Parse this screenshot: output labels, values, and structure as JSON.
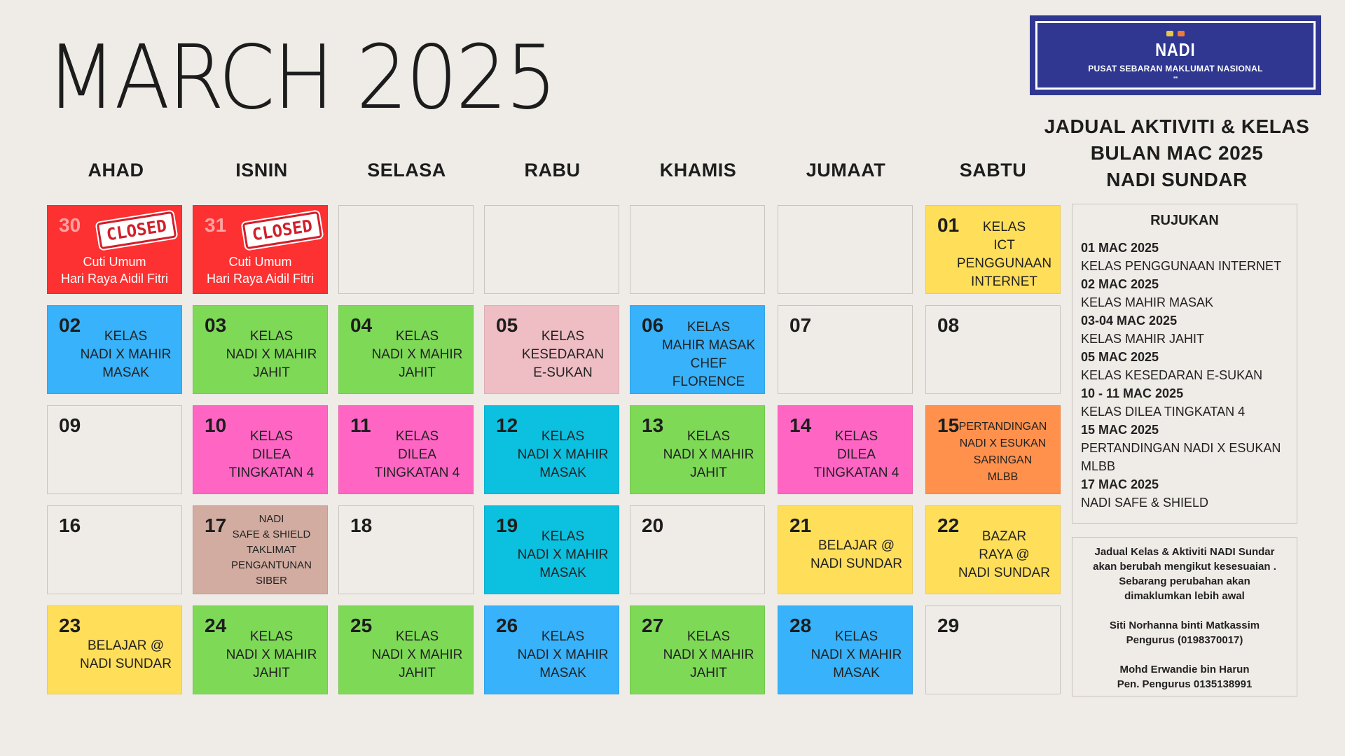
{
  "title": "MARCH 2025",
  "logo": {
    "name": "NADI",
    "subtitle": "PUSAT SEBARAN MAKLUMAT NASIONAL"
  },
  "heading": {
    "line1": "JADUAL AKTIVITI & KELAS",
    "line2": "BULAN MAC 2025",
    "line3": "NADI SUNDAR"
  },
  "days": [
    "AHAD",
    "ISNIN",
    "SELASA",
    "RABU",
    "KHAMIS",
    "JUMAAT",
    "SABTU"
  ],
  "colors": {
    "red": "#fd3131",
    "blue": "#37b2fb",
    "green": "#7ed957",
    "pink": "#efbec4",
    "magenta": "#ff66c4",
    "cyan": "#0cc0df",
    "orange": "#ff914d",
    "yellow": "#ffde59",
    "taupe": "#d2aca0",
    "closed_stamp": "#d21f2a",
    "logo_blue": "#2f3790"
  },
  "calendar": {
    "weeks": [
      [
        {
          "num": "30",
          "color": "red",
          "closed": "CLOSED",
          "lines": [
            "Cuti Umum",
            "Hari Raya Aidil Fitri"
          ]
        },
        {
          "num": "31",
          "color": "red",
          "closed": "CLOSED",
          "lines": [
            "Cuti Umum",
            "Hari Raya Aidil Fitri"
          ]
        },
        {
          "num": "",
          "color": "",
          "lines": []
        },
        {
          "num": "",
          "color": "",
          "lines": []
        },
        {
          "num": "",
          "color": "",
          "lines": []
        },
        {
          "num": "",
          "color": "",
          "lines": []
        },
        {
          "num": "01",
          "color": "yellow",
          "lines": [
            "KELAS",
            "ICT PENGGUNAAN",
            "INTERNET"
          ]
        }
      ],
      [
        {
          "num": "02",
          "color": "blue",
          "lines": [
            "KELAS",
            "NADI X MAHIR",
            "MASAK"
          ]
        },
        {
          "num": "03",
          "color": "green",
          "lines": [
            "KELAS",
            "NADI X MAHIR",
            "JAHIT"
          ]
        },
        {
          "num": "04",
          "color": "green",
          "lines": [
            "KELAS",
            "NADI X MAHIR",
            "JAHIT"
          ]
        },
        {
          "num": "05",
          "color": "pink",
          "lines": [
            "KELAS",
            "KESEDARAN",
            "E-SUKAN"
          ]
        },
        {
          "num": "06",
          "color": "blue",
          "lines": [
            "KELAS",
            "MAHIR MASAK",
            "CHEF FLORENCE"
          ]
        },
        {
          "num": "07",
          "color": "",
          "lines": []
        },
        {
          "num": "08",
          "color": "",
          "lines": []
        }
      ],
      [
        {
          "num": "09",
          "color": "",
          "lines": []
        },
        {
          "num": "10",
          "color": "magenta",
          "lines": [
            "KELAS",
            "DILEA",
            "TINGKATAN 4"
          ]
        },
        {
          "num": "11",
          "color": "magenta",
          "lines": [
            "KELAS",
            "DILEA",
            "TINGKATAN 4"
          ]
        },
        {
          "num": "12",
          "color": "cyan",
          "lines": [
            "KELAS",
            "NADI X MAHIR",
            "MASAK"
          ]
        },
        {
          "num": "13",
          "color": "green",
          "lines": [
            "KELAS",
            "NADI X MAHIR",
            "JAHIT"
          ]
        },
        {
          "num": "14",
          "color": "magenta",
          "lines": [
            "KELAS",
            "DILEA",
            "TINGKATAN 4"
          ]
        },
        {
          "num": "15",
          "color": "orange",
          "size": "small",
          "lines": [
            "PERTANDINGAN",
            "NADI X ESUKAN",
            "SARINGAN",
            "MLBB"
          ]
        }
      ],
      [
        {
          "num": "16",
          "color": "",
          "lines": []
        },
        {
          "num": "17",
          "color": "taupe",
          "size": "tiny",
          "lines": [
            "NADI",
            "SAFE & SHIELD",
            "TAKLIMAT",
            "PENGANTUNAN",
            "SIBER"
          ]
        },
        {
          "num": "18",
          "color": "",
          "lines": []
        },
        {
          "num": "19",
          "color": "cyan",
          "lines": [
            "KELAS",
            "NADI X MAHIR",
            "MASAK"
          ]
        },
        {
          "num": "20",
          "color": "",
          "lines": []
        },
        {
          "num": "21",
          "color": "yellow",
          "lines": [
            "BELAJAR @",
            "NADI SUNDAR"
          ]
        },
        {
          "num": "22",
          "color": "yellow",
          "lines": [
            "BAZAR",
            "RAYA @",
            "NADI SUNDAR"
          ]
        }
      ],
      [
        {
          "num": "23",
          "color": "yellow",
          "lines": [
            "BELAJAR @",
            "NADI SUNDAR"
          ]
        },
        {
          "num": "24",
          "color": "green",
          "lines": [
            "KELAS",
            "NADI X MAHIR",
            "JAHIT"
          ]
        },
        {
          "num": "25",
          "color": "green",
          "lines": [
            "KELAS",
            "NADI X MAHIR",
            "JAHIT"
          ]
        },
        {
          "num": "26",
          "color": "blue",
          "lines": [
            "KELAS",
            "NADI X MAHIR",
            "MASAK"
          ]
        },
        {
          "num": "27",
          "color": "green",
          "lines": [
            "KELAS",
            "NADI X MAHIR",
            "JAHIT"
          ]
        },
        {
          "num": "28",
          "color": "blue",
          "lines": [
            "KELAS",
            "NADI X MAHIR",
            "MASAK"
          ]
        },
        {
          "num": "29",
          "color": "",
          "lines": []
        }
      ]
    ]
  },
  "reference": {
    "title": "RUJUKAN",
    "items": [
      {
        "date": "01 MAC 2025",
        "text": "KELAS PENGGUNAAN INTERNET"
      },
      {
        "date": "02 MAC 2025",
        "text": "KELAS MAHIR MASAK"
      },
      {
        "date": "03-04 MAC 2025",
        "text": "KELAS MAHIR JAHIT"
      },
      {
        "date": "05 MAC 2025",
        "text": "KELAS KESEDARAN E-SUKAN"
      },
      {
        "date": "10 - 11 MAC 2025",
        "text": "KELAS DILEA TINGKATAN 4"
      },
      {
        "date": "15 MAC 2025",
        "text": "PERTANDINGAN NADI X ESUKAN MLBB"
      },
      {
        "date": "17 MAC 2025",
        "text": "NADI SAFE & SHIELD"
      }
    ]
  },
  "note": {
    "line1": "Jadual Kelas & Aktiviti NADI Sundar",
    "line2": "akan berubah mengikut kesesuaian .",
    "line3": "Sebarang perubahan akan",
    "line4": "dimaklumkan lebih awal",
    "contact1_name": "Siti Norhanna binti Matkassim",
    "contact1_role": "Pengurus (0198370017)",
    "contact2_name": "Mohd Erwandie bin Harun",
    "contact2_role": "Pen. Pengurus 0135138991"
  }
}
